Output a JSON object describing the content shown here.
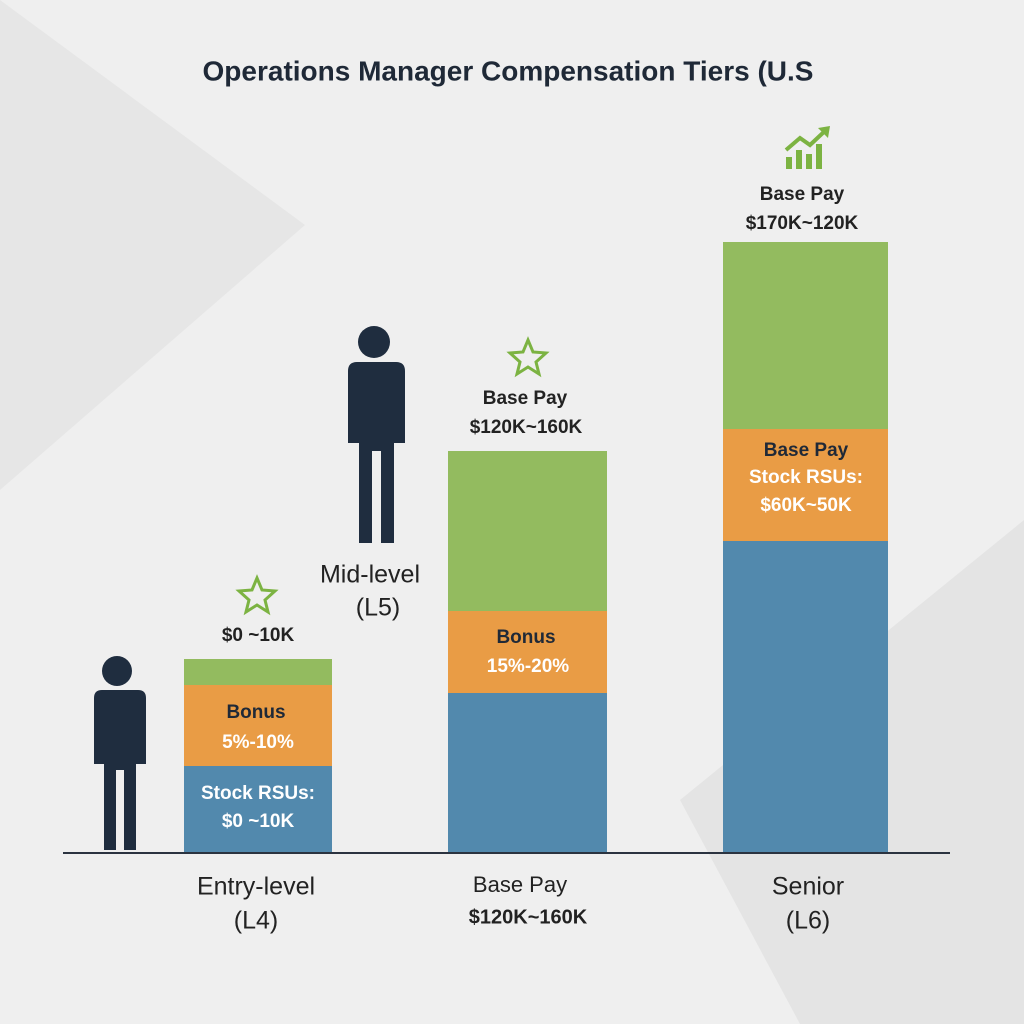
{
  "title": "Operations Manager Compensation Tiers (U.S",
  "tiers": [
    {
      "top": [
        "$0 ~10K"
      ],
      "middle": [
        "Bonus",
        "5%-10%"
      ],
      "bottom": [
        "Stock RSUs:",
        "$0 ~10K"
      ],
      "caption": [
        "Entry-level",
        "(L4)"
      ]
    },
    {
      "figure_label": [
        "Mid-level",
        "(L5)"
      ],
      "top": [
        "Base Pay",
        "$120K~160K"
      ],
      "middle": [
        "Bonus",
        "15%-20%"
      ],
      "caption": [
        "Base Pay",
        "$120K~160K"
      ]
    },
    {
      "top": [
        "Base Pay",
        "$170K~120K"
      ],
      "middle": [
        "Base Pay",
        "Stock RSUs:",
        "$60K~50K"
      ],
      "caption": [
        "Senior",
        "(L6)"
      ]
    }
  ]
}
